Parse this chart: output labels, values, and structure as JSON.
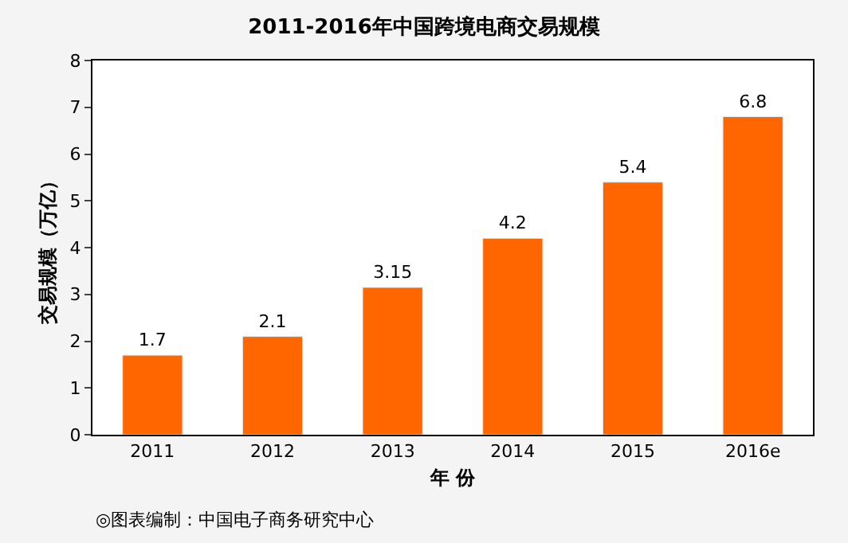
{
  "chart_data": {
    "type": "bar",
    "title": "2011-2016年中国跨境电商交易规模",
    "xlabel": "年 份",
    "ylabel": "交易规模（万亿）",
    "categories": [
      "2011",
      "2012",
      "2013",
      "2014",
      "2015",
      "2016e"
    ],
    "values": [
      1.7,
      2.1,
      3.15,
      4.2,
      5.4,
      6.8
    ],
    "color": "#ff6600",
    "ylim": [
      0,
      8
    ],
    "yticks": [
      0,
      1,
      2,
      3,
      4,
      5,
      6,
      7,
      8
    ],
    "data_labels": true,
    "annotations": [
      "◎图表编制：中国电子商务研究中心"
    ]
  }
}
